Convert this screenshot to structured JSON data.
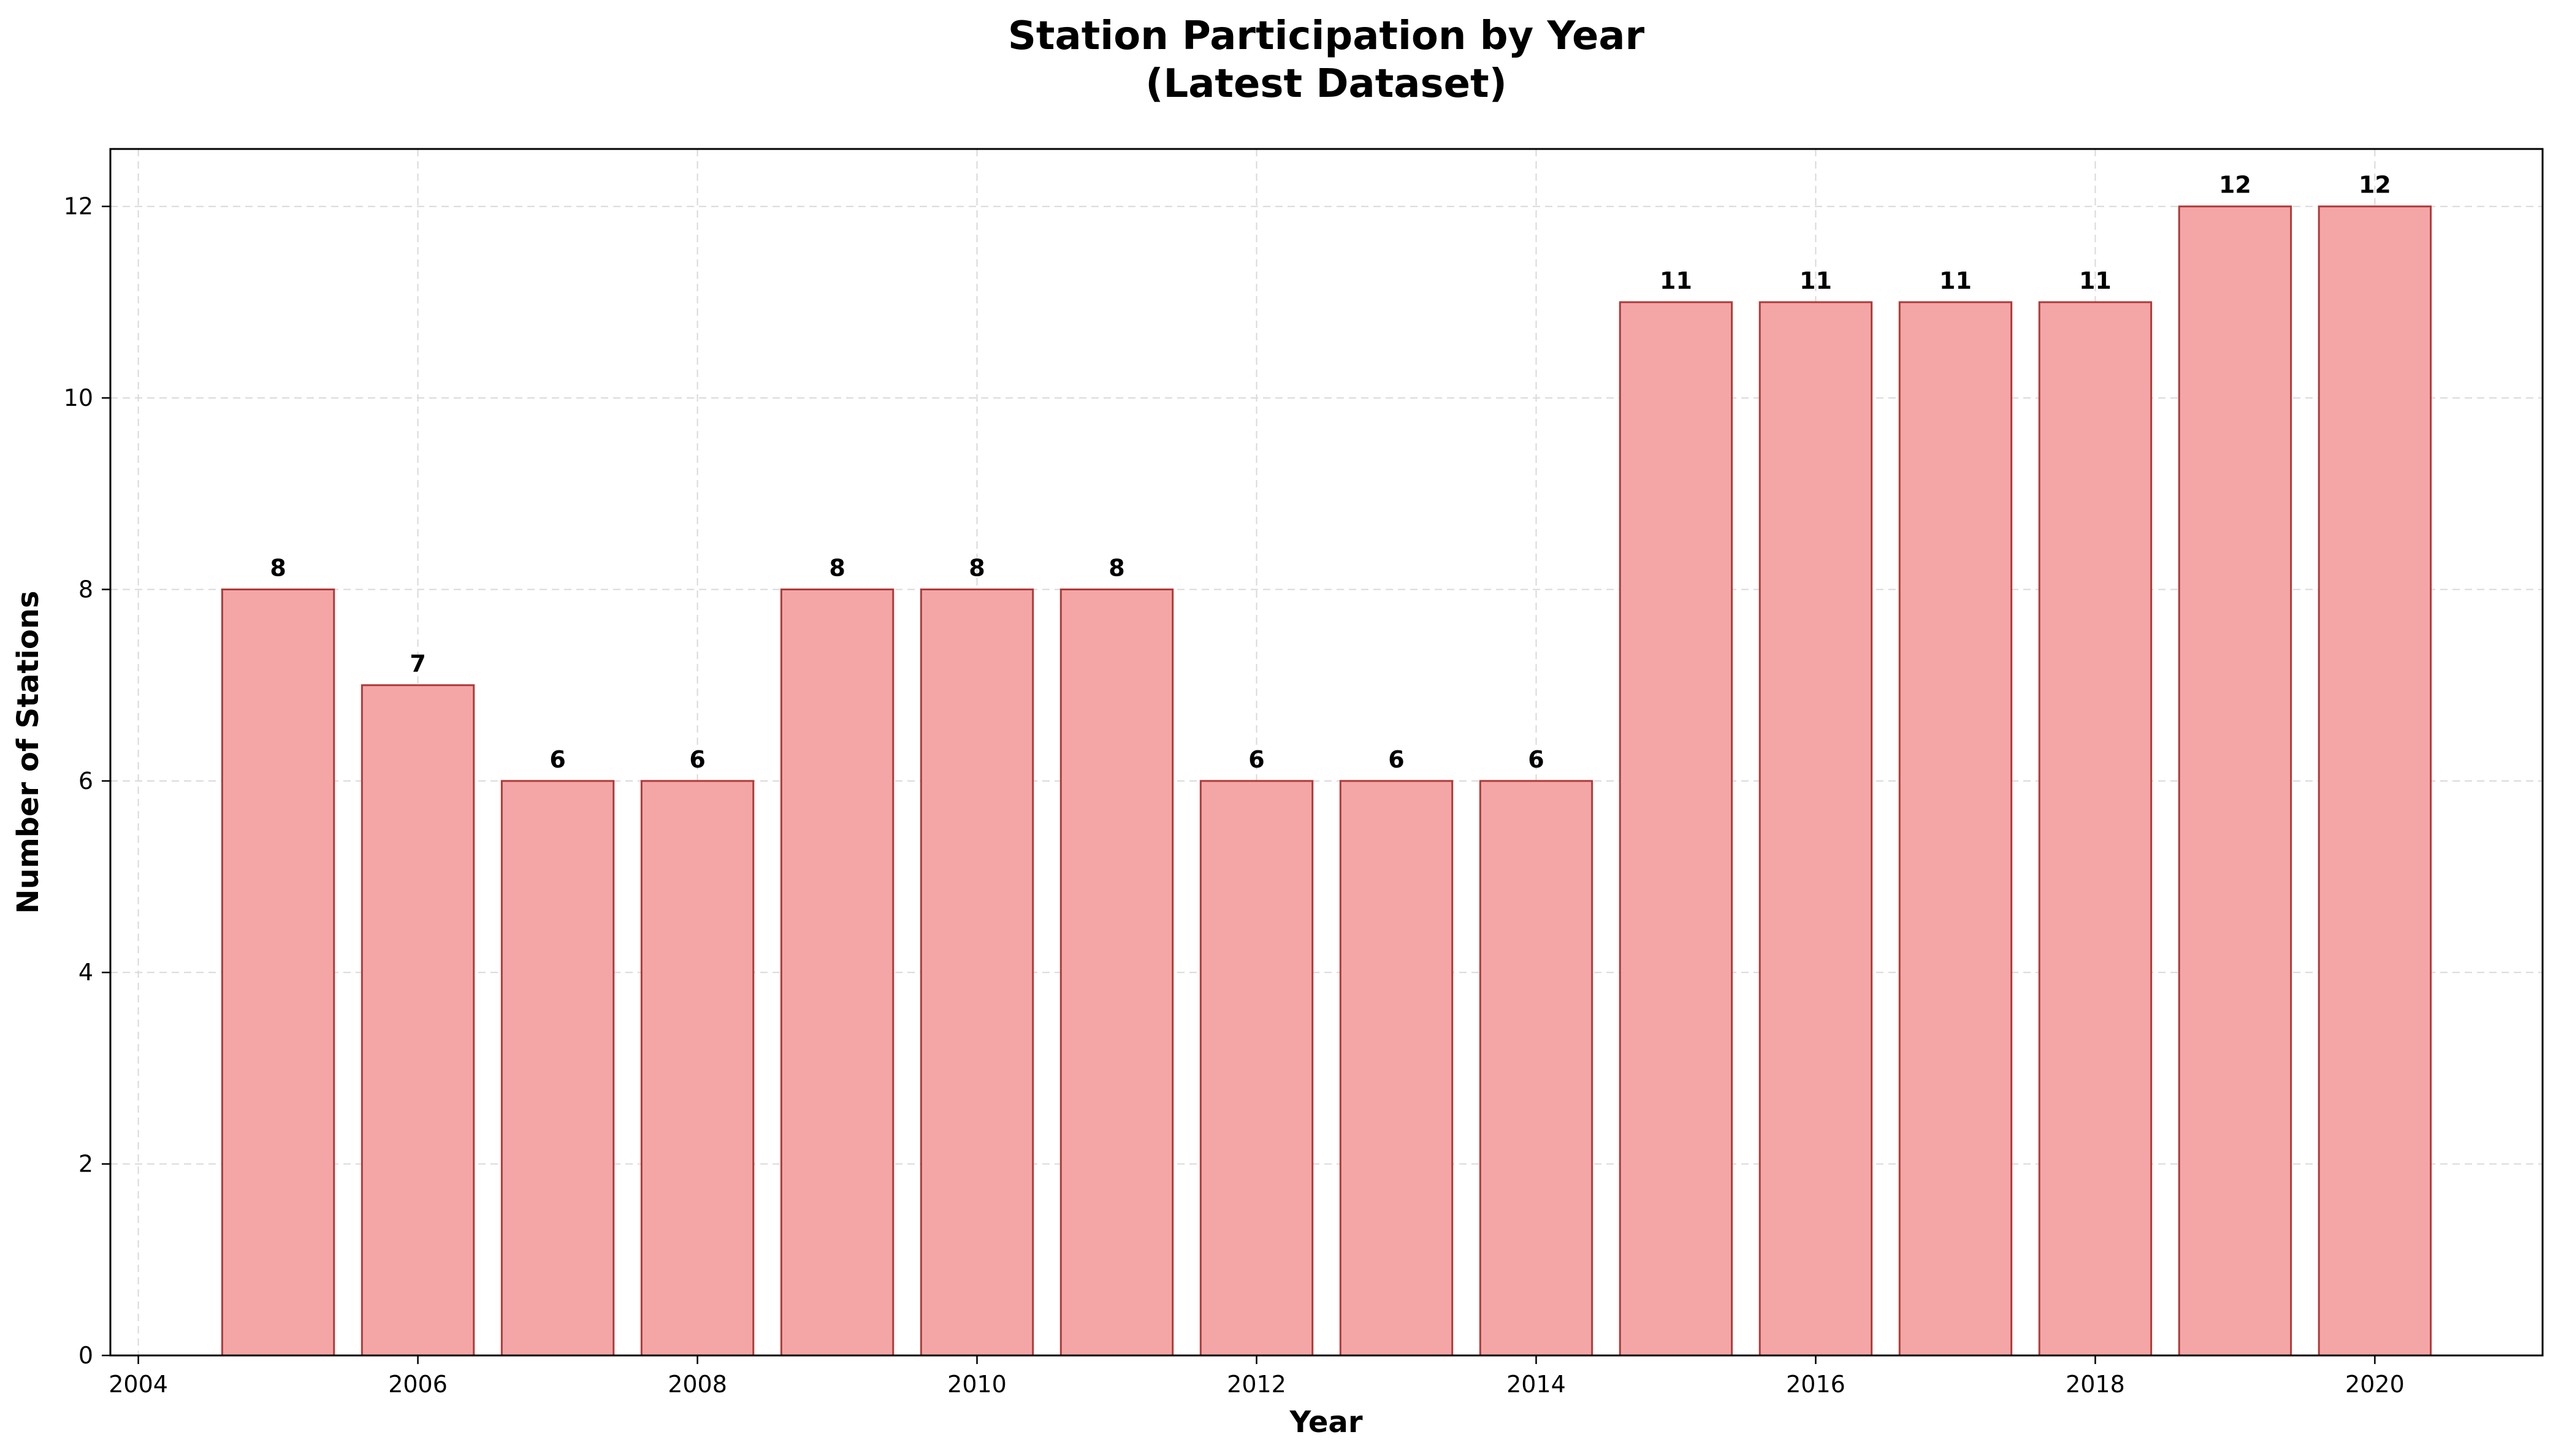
{
  "chart_data": {
    "type": "bar",
    "title": "Station Participation by Year",
    "subtitle": "(Latest Dataset)",
    "xlabel": "Year",
    "ylabel": "Number of Stations",
    "x": [
      2005,
      2006,
      2007,
      2008,
      2009,
      2010,
      2011,
      2012,
      2013,
      2014,
      2015,
      2016,
      2017,
      2018,
      2019,
      2020
    ],
    "values": [
      8,
      7,
      6,
      6,
      8,
      8,
      8,
      6,
      6,
      6,
      11,
      11,
      11,
      11,
      12,
      12
    ],
    "xlim": [
      2003.8,
      2021.2
    ],
    "ylim": [
      0,
      12.6
    ],
    "xticks": [
      2004,
      2006,
      2008,
      2010,
      2012,
      2014,
      2016,
      2018,
      2020
    ],
    "yticks": [
      0,
      2,
      4,
      6,
      8,
      10,
      12
    ],
    "grid": true,
    "legend": "none",
    "colors": {
      "bar_fill": "#f4a6a6",
      "bar_edge": "#b03a3a",
      "grid": "#d9d9d9"
    }
  }
}
